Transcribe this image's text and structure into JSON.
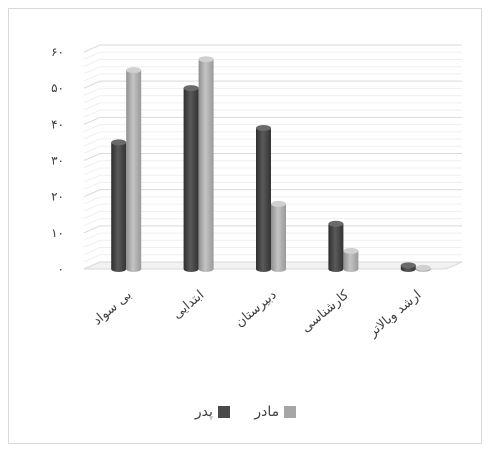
{
  "chart_data": {
    "type": "bar",
    "title": "",
    "xlabel": "",
    "ylabel": "",
    "ylim": [
      0,
      60
    ],
    "yticks": [
      0,
      10,
      20,
      30,
      40,
      50,
      60
    ],
    "ytick_labels": [
      "۰",
      "۱۰",
      "۲۰",
      "۳۰",
      "۴۰",
      "۵۰",
      "۶۰"
    ],
    "categories": [
      "بی سواد",
      "ابتدایی",
      "دبیرستان",
      "کارشناسی",
      "ارشد وبالاتر"
    ],
    "series": [
      {
        "name": "پدر",
        "color": "#4a4a4a",
        "values": [
          35,
          50,
          39,
          12.5,
          1
        ]
      },
      {
        "name": "مادر",
        "color": "#a6a6a6",
        "values": [
          55,
          58,
          18,
          5,
          0.3
        ]
      }
    ],
    "grid": true,
    "legend_position": "bottom",
    "style": "3d-cylinder"
  }
}
